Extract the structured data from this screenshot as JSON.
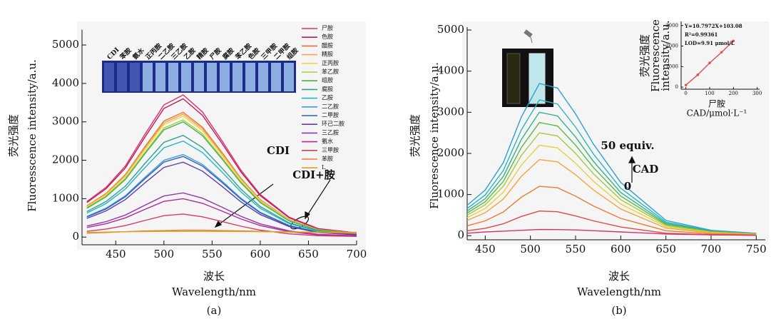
{
  "chart_data": [
    {
      "type": "line",
      "caption": "(a)",
      "ylabel": [
        "荧光强度",
        "Fluoresscence intensity/a.u."
      ],
      "xlabel": [
        "波长",
        "Wavelength/nm"
      ],
      "annotations": [
        "CDI",
        "CDI+胺"
      ],
      "photo_labels": [
        "CDI",
        "苯胺",
        "氨水",
        "正丙胺",
        "二乙胺",
        "三乙胺",
        "乙胺",
        "精胺",
        "尸胺",
        "腐胺",
        "苯乙胺",
        "色胺",
        "三甲胺",
        "二甲胺",
        "组胺"
      ],
      "xlim": [
        415,
        700
      ],
      "ylim": [
        -200,
        5400
      ],
      "xticks": [
        450,
        500,
        550,
        600,
        650,
        700
      ],
      "yticks": [
        0,
        1000,
        2000,
        3000,
        4000,
        5000
      ],
      "x": [
        420,
        440,
        460,
        480,
        500,
        520,
        540,
        560,
        580,
        600,
        630,
        660,
        700
      ],
      "series": [
        {
          "name": "尸胺",
          "color": "#d6336c",
          "values": [
            925,
            1295,
            1850,
            2664,
            3441,
            3700,
            3256,
            2516,
            1739,
            1110,
            518,
            222,
            111
          ]
        },
        {
          "name": "色胺",
          "color": "#c2185b",
          "values": [
            900,
            1260,
            1800,
            2592,
            3348,
            3600,
            3168,
            2448,
            1692,
            1080,
            504,
            216,
            108
          ]
        },
        {
          "name": "醋胺",
          "color": "#e8743b",
          "values": [
            813,
            1138,
            1625,
            2340,
            3023,
            3250,
            2860,
            2210,
            1528,
            975,
            455,
            195,
            98
          ]
        },
        {
          "name": "精胺",
          "color": "#f5a54a",
          "values": [
            800,
            1120,
            1600,
            2304,
            2976,
            3200,
            2816,
            2176,
            1504,
            960,
            448,
            192,
            96
          ]
        },
        {
          "name": "正丙胺",
          "color": "#e9d845",
          "values": [
            788,
            1103,
            1575,
            2268,
            2930,
            3150,
            2772,
            2142,
            1481,
            945,
            441,
            189,
            95
          ]
        },
        {
          "name": "苯乙胺",
          "color": "#a9cf3c",
          "values": [
            763,
            1068,
            1525,
            2196,
            2837,
            3050,
            2684,
            2074,
            1434,
            915,
            427,
            183,
            92
          ]
        },
        {
          "name": "组胺",
          "color": "#4cb050",
          "values": [
            750,
            1050,
            1500,
            2160,
            2790,
            3000,
            2640,
            2040,
            1410,
            900,
            420,
            180,
            90
          ]
        },
        {
          "name": "腐胺",
          "color": "#2aa58e",
          "values": [
            663,
            928,
            1325,
            1908,
            2465,
            2650,
            2332,
            1802,
            1246,
            795,
            371,
            159,
            80
          ]
        },
        {
          "name": "乙胺",
          "color": "#23b5c9",
          "values": [
            625,
            875,
            1250,
            1800,
            2325,
            2500,
            2200,
            1700,
            1175,
            750,
            350,
            150,
            75
          ]
        },
        {
          "name": "二乙胺",
          "color": "#3a9be0",
          "values": [
            538,
            753,
            1075,
            1548,
            2000,
            2150,
            1892,
            1462,
            1011,
            645,
            301,
            129,
            65
          ]
        },
        {
          "name": "二甲胺",
          "color": "#2f5fc4",
          "values": [
            525,
            735,
            1050,
            1512,
            1953,
            2100,
            1848,
            1428,
            987,
            630,
            294,
            126,
            63
          ]
        },
        {
          "name": "环己二胺",
          "color": "#5b3fa8",
          "values": [
            488,
            683,
            975,
            1404,
            1814,
            1950,
            1716,
            1326,
            917,
            585,
            273,
            117,
            59
          ]
        },
        {
          "name": "三乙胺",
          "color": "#8e3aa8",
          "values": [
            288,
            403,
            575,
            828,
            1070,
            1150,
            1012,
            782,
            541,
            345,
            161,
            69,
            35
          ]
        },
        {
          "name": "氨水",
          "color": "#b02a9a",
          "values": [
            250,
            350,
            500,
            720,
            930,
            1000,
            880,
            680,
            470,
            300,
            140,
            60,
            30
          ]
        },
        {
          "name": "三甲胺",
          "color": "#d63a6a",
          "values": [
            150,
            210,
            300,
            432,
            558,
            600,
            528,
            408,
            282,
            180,
            84,
            36,
            18
          ]
        },
        {
          "name": "苯胺",
          "color": "#ef7c3a",
          "values": [
            100,
            120,
            140,
            160,
            170,
            180,
            178,
            170,
            160,
            150,
            135,
            120,
            100
          ]
        },
        {
          "name": "L",
          "color": "#d9a520",
          "values": [
            120,
            130,
            140,
            145,
            150,
            150,
            150,
            148,
            145,
            140,
            135,
            130,
            125
          ]
        }
      ]
    },
    {
      "type": "line",
      "caption": "(b)",
      "ylabel": [
        "荧光强度",
        "Fluorescence  intensity/a.u."
      ],
      "xlabel": [
        "波长",
        "Wavelength/nm"
      ],
      "annotations": [
        "50 equiv.",
        "CAD",
        "0"
      ],
      "xlim": [
        430,
        760
      ],
      "ylim": [
        -100,
        5070
      ],
      "xticks": [
        450,
        500,
        550,
        600,
        650,
        700,
        750
      ],
      "yticks": [
        0,
        1000,
        2000,
        3000,
        4000,
        5000
      ],
      "x": [
        430,
        450,
        470,
        490,
        510,
        530,
        550,
        570,
        600,
        650,
        700,
        750
      ],
      "series": [
        {
          "color": "#2a9fd6",
          "values": [
            740,
            1110,
            1776,
            2886,
            3700,
            3589,
            2960,
            2220,
            1295,
            370,
            130,
            56
          ]
        },
        {
          "color": "#2bb5c0",
          "values": [
            660,
            990,
            1584,
            2574,
            3300,
            3201,
            2640,
            1980,
            1155,
            330,
            116,
            50
          ]
        },
        {
          "color": "#34b38a",
          "values": [
            600,
            900,
            1440,
            2340,
            3000,
            2910,
            2400,
            1800,
            1050,
            300,
            105,
            45
          ]
        },
        {
          "color": "#5cb848",
          "values": [
            550,
            825,
            1320,
            2145,
            2750,
            2668,
            2200,
            1650,
            963,
            275,
            96,
            41
          ]
        },
        {
          "color": "#a7c93a",
          "values": [
            500,
            750,
            1200,
            1950,
            2500,
            2425,
            2000,
            1500,
            875,
            250,
            88,
            38
          ]
        },
        {
          "color": "#e3d240",
          "values": [
            440,
            660,
            1056,
            1716,
            2200,
            2134,
            1760,
            1320,
            770,
            220,
            77,
            33
          ]
        },
        {
          "color": "#f2a53c",
          "values": [
            370,
            555,
            888,
            1443,
            1850,
            1795,
            1480,
            1110,
            648,
            185,
            65,
            28
          ]
        },
        {
          "color": "#ec7a34",
          "values": [
            240,
            360,
            576,
            936,
            1200,
            1164,
            960,
            720,
            420,
            120,
            42,
            18
          ]
        },
        {
          "color": "#e04848",
          "values": [
            120,
            180,
            288,
            468,
            600,
            582,
            480,
            360,
            210,
            60,
            21,
            9
          ]
        },
        {
          "color": "#d6336c",
          "values": [
            60,
            90,
            110,
            130,
            150,
            148,
            140,
            120,
            90,
            40,
            20,
            10
          ]
        }
      ]
    },
    {
      "type": "line",
      "markers": true,
      "ylabel": [
        "荧光强度",
        "Fluorescence",
        "intensity/a.u."
      ],
      "xlabel": [
        "尸胺",
        "CAD/μmol·L⁻¹"
      ],
      "annotations": [
        "Y=10.7972X+103.08",
        "R²=0.99361",
        "LOD=9.91 μmol/L"
      ],
      "xlim": [
        -20,
        310
      ],
      "ylim": [
        -100,
        3200
      ],
      "xticks": [
        0,
        100,
        200,
        300
      ],
      "yticks": [
        0,
        1000,
        2000,
        3000
      ],
      "x": [
        0,
        50,
        100,
        150,
        200
      ],
      "series": [
        {
          "color": "#e05050",
          "values": [
            100,
            600,
            1180,
            1700,
            2250
          ]
        }
      ]
    }
  ]
}
